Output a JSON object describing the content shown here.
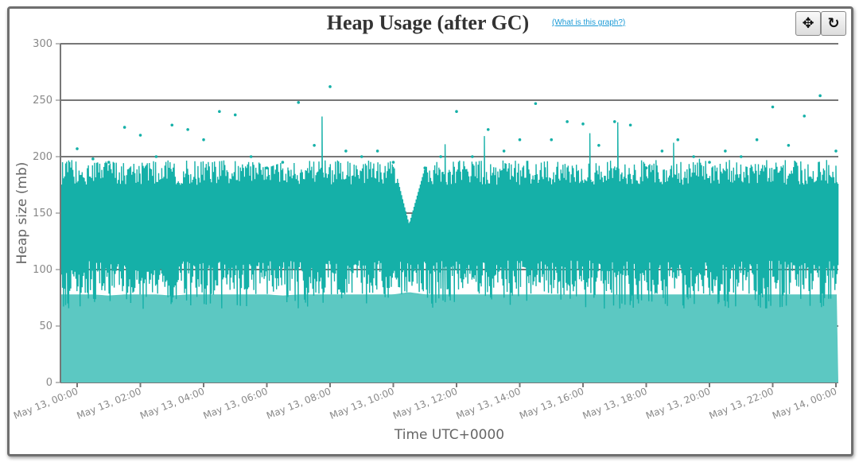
{
  "header": {
    "title": "Heap Usage (after GC)",
    "help_link": "(What is this graph?)",
    "pan_button_icon": "move-arrows-icon",
    "reset_button_icon": "refresh-icon"
  },
  "colors": {
    "line": "#15b0a8",
    "fill": "#5cc8c2",
    "grid": "#777777",
    "axis_text": "#888888"
  },
  "chart_data": {
    "type": "line",
    "title": "Heap Usage (after GC)",
    "xlabel": "Time UTC+0000",
    "ylabel": "Heap size (mb)",
    "ylim": [
      0,
      300
    ],
    "yticks": [
      0,
      50,
      100,
      150,
      200,
      250,
      300
    ],
    "xtick_labels": [
      "May 13, 00:00",
      "May 13, 02:00",
      "May 13, 04:00",
      "May 13, 06:00",
      "May 13, 08:00",
      "May 13, 10:00",
      "May 13, 12:00",
      "May 13, 14:00",
      "May 13, 16:00",
      "May 13, 18:00",
      "May 13, 20:00",
      "May 13, 22:00",
      "May 14, 00:00"
    ],
    "grid": true,
    "x_hours": [
      0,
      0.5,
      1,
      1.5,
      2,
      2.5,
      3,
      3.5,
      4,
      4.5,
      5,
      5.5,
      6,
      6.5,
      7,
      7.5,
      8,
      8.5,
      9,
      9.5,
      10,
      10.5,
      11,
      11.5,
      12,
      12.5,
      13,
      13.5,
      14,
      14.5,
      15,
      15.5,
      16,
      16.5,
      17,
      17.5,
      18,
      18.5,
      19,
      19.5,
      20,
      20.5,
      21,
      21.5,
      22,
      22.5,
      23,
      23.5,
      24
    ],
    "series": [
      {
        "role": "max",
        "values": [
          207,
          198,
          195,
          226,
          219,
          200,
          228,
          224,
          215,
          240,
          237,
          200,
          190,
          195,
          248,
          210,
          262,
          205,
          200,
          205,
          195,
          140,
          190,
          200,
          240,
          200,
          224,
          205,
          215,
          247,
          215,
          231,
          229,
          210,
          231,
          228,
          190,
          205,
          215,
          200,
          195,
          205,
          200,
          215,
          244,
          210,
          236,
          254,
          205
        ]
      },
      {
        "role": "min",
        "values": [
          65,
          64,
          66,
          65,
          63,
          66,
          64,
          65,
          66,
          63,
          65,
          67,
          64,
          65,
          62,
          66,
          64,
          65,
          66,
          65,
          64,
          90,
          62,
          65,
          64,
          66,
          65,
          64,
          66,
          65,
          64,
          65,
          66,
          64,
          65,
          64,
          66,
          65,
          64,
          65,
          66,
          64,
          65,
          66,
          65,
          64,
          62,
          65,
          66
        ]
      },
      {
        "role": "baseline",
        "values": [
          78,
          78,
          77,
          78,
          78,
          78,
          77,
          78,
          78,
          78,
          78,
          78,
          78,
          77,
          78,
          78,
          78,
          78,
          78,
          78,
          78,
          80,
          78,
          78,
          78,
          78,
          78,
          78,
          78,
          78,
          78,
          78,
          78,
          78,
          78,
          78,
          78,
          78,
          78,
          78,
          78,
          78,
          78,
          78,
          78,
          78,
          78,
          78,
          78
        ]
      }
    ]
  }
}
